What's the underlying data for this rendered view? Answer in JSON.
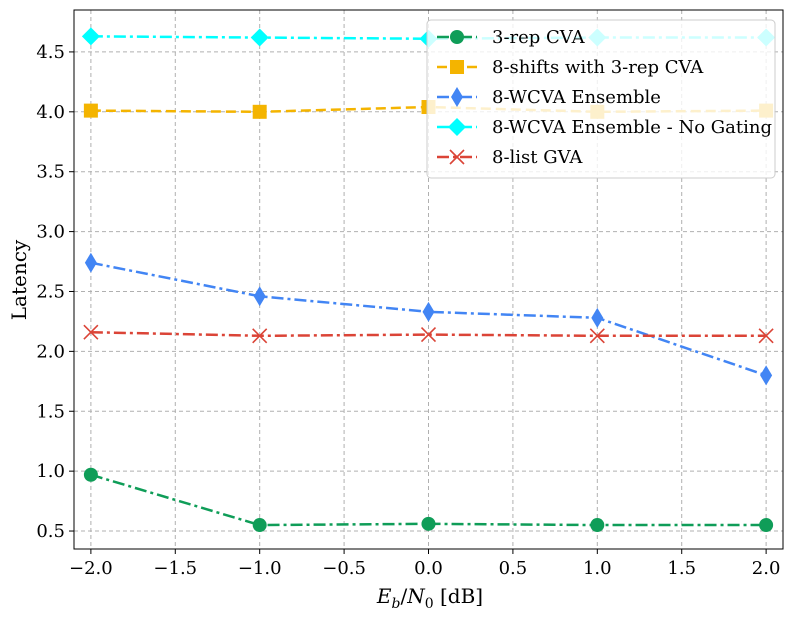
{
  "chart_data": {
    "type": "line",
    "title": "",
    "xlabel": "E_b/N_0 [dB]",
    "xlabel_parts": {
      "e": "E",
      "b": "b",
      "slash": "/",
      "n": "N",
      "zero": "0",
      "unit": " [dB]"
    },
    "ylabel": "Latency",
    "xlim": [
      -2.1,
      2.1
    ],
    "ylim": [
      0.35,
      4.85
    ],
    "x_ticks": [
      -2.0,
      -1.5,
      -1.0,
      -0.5,
      0.0,
      0.5,
      1.0,
      1.5,
      2.0
    ],
    "x_tick_labels": [
      "−2.0",
      "−1.5",
      "−1.0",
      "−0.5",
      "0.0",
      "0.5",
      "1.0",
      "1.5",
      "2.0"
    ],
    "y_ticks": [
      0.5,
      1.0,
      1.5,
      2.0,
      2.5,
      3.0,
      3.5,
      4.0,
      4.5
    ],
    "y_tick_labels": [
      "0.5",
      "1.0",
      "1.5",
      "2.0",
      "2.5",
      "3.0",
      "3.5",
      "4.0",
      "4.5"
    ],
    "grid": true,
    "legend_position": "top-right",
    "x": [
      -2.0,
      -1.0,
      0.0,
      1.0,
      2.0
    ],
    "series": [
      {
        "name": "3-rep CVA",
        "values": [
          0.97,
          0.55,
          0.56,
          0.55,
          0.55
        ],
        "color": "#0f9d58",
        "marker": "circle",
        "line": "dashdot"
      },
      {
        "name": "8-shifts with 3-rep CVA",
        "values": [
          4.01,
          4.0,
          4.04,
          4.0,
          4.01
        ],
        "color": "#f4b400",
        "marker": "square",
        "line": "dashed"
      },
      {
        "name": "8-WCVA Ensemble",
        "values": [
          2.74,
          2.46,
          2.33,
          2.28,
          1.8
        ],
        "color": "#4285f4",
        "marker": "thin-diamond",
        "line": "dashdot"
      },
      {
        "name": "8-WCVA Ensemble - No Gating",
        "values": [
          4.63,
          4.62,
          4.61,
          4.62,
          4.62
        ],
        "color": "#00ffff",
        "marker": "diamond",
        "line": "dashdot"
      },
      {
        "name": "8-list GVA",
        "values": [
          2.16,
          2.13,
          2.14,
          2.13,
          2.13
        ],
        "color": "#db4437",
        "marker": "x",
        "line": "dashdot"
      }
    ]
  }
}
